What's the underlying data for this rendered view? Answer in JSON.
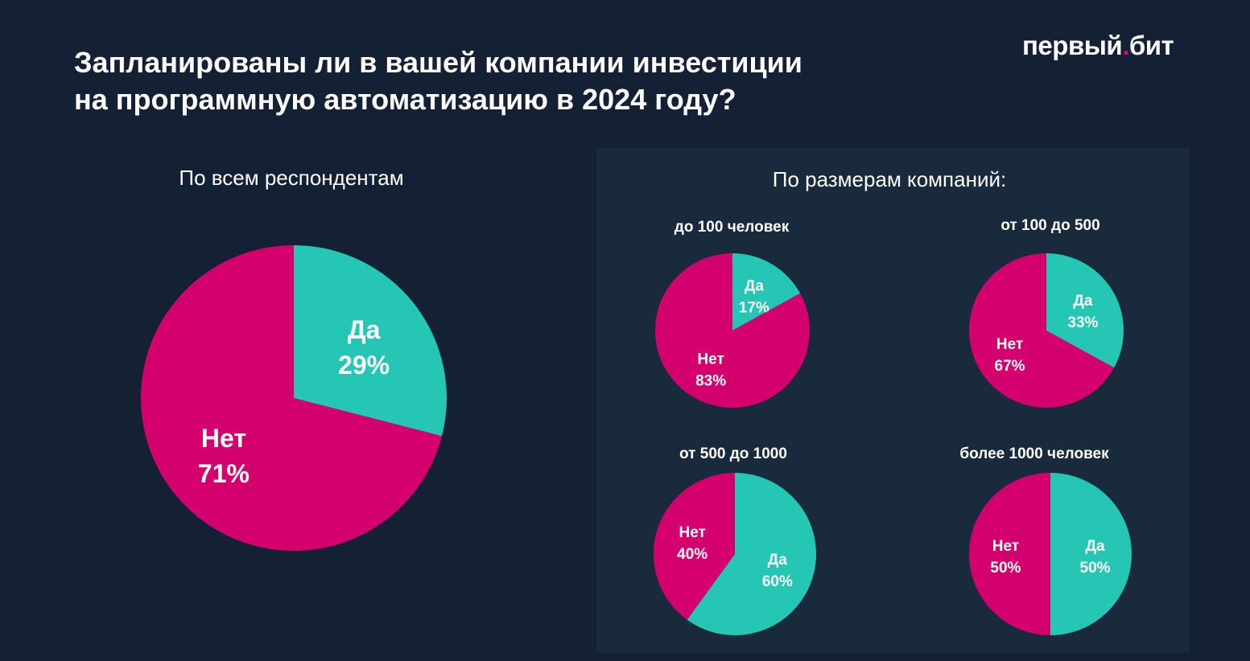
{
  "title": {
    "line1": "Запланированы ли в вашей компании инвестиции",
    "line2": "на программную автоматизацию в 2024 году?"
  },
  "logo": {
    "part1": "первый",
    "dot": ".",
    "part2": "бит"
  },
  "colors": {
    "yes": "#26c6b4",
    "no": "#d4006e",
    "background": "#142134",
    "panel": "#1a2a3d"
  },
  "left_section": {
    "title": "По всем респондентам"
  },
  "right_section": {
    "title": "По размерам компаний:"
  },
  "chart_data": [
    {
      "type": "pie",
      "title": "По всем респондентам",
      "slices": [
        {
          "label": "Да",
          "value": 29,
          "display": "29%"
        },
        {
          "label": "Нет",
          "value": 71,
          "display": "71%"
        }
      ]
    },
    {
      "type": "pie",
      "title": "до 100 человек",
      "slices": [
        {
          "label": "Да",
          "value": 17,
          "display": "17%"
        },
        {
          "label": "Нет",
          "value": 83,
          "display": "83%"
        }
      ]
    },
    {
      "type": "pie",
      "title": "от 100 до 500",
      "slices": [
        {
          "label": "Да",
          "value": 33,
          "display": "33%"
        },
        {
          "label": "Нет",
          "value": 67,
          "display": "67%"
        }
      ]
    },
    {
      "type": "pie",
      "title": "от 500 до 1000",
      "slices": [
        {
          "label": "Да",
          "value": 60,
          "display": "60%"
        },
        {
          "label": "Нет",
          "value": 40,
          "display": "40%"
        }
      ]
    },
    {
      "type": "pie",
      "title": "более 1000 человек",
      "slices": [
        {
          "label": "Да",
          "value": 50,
          "display": "50%"
        },
        {
          "label": "Нет",
          "value": 50,
          "display": "50%"
        }
      ]
    }
  ]
}
